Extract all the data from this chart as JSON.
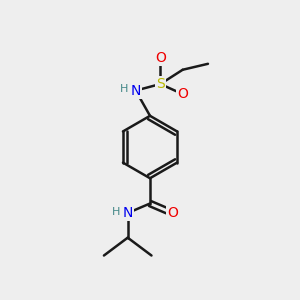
{
  "bg_color": "#eeeeee",
  "bond_color": "#1a1a1a",
  "colors": {
    "C": "#1a1a1a",
    "N": "#0000ee",
    "O": "#ee0000",
    "S": "#bbbb00",
    "H": "#448888"
  },
  "font_size": 10,
  "line_width": 1.8
}
